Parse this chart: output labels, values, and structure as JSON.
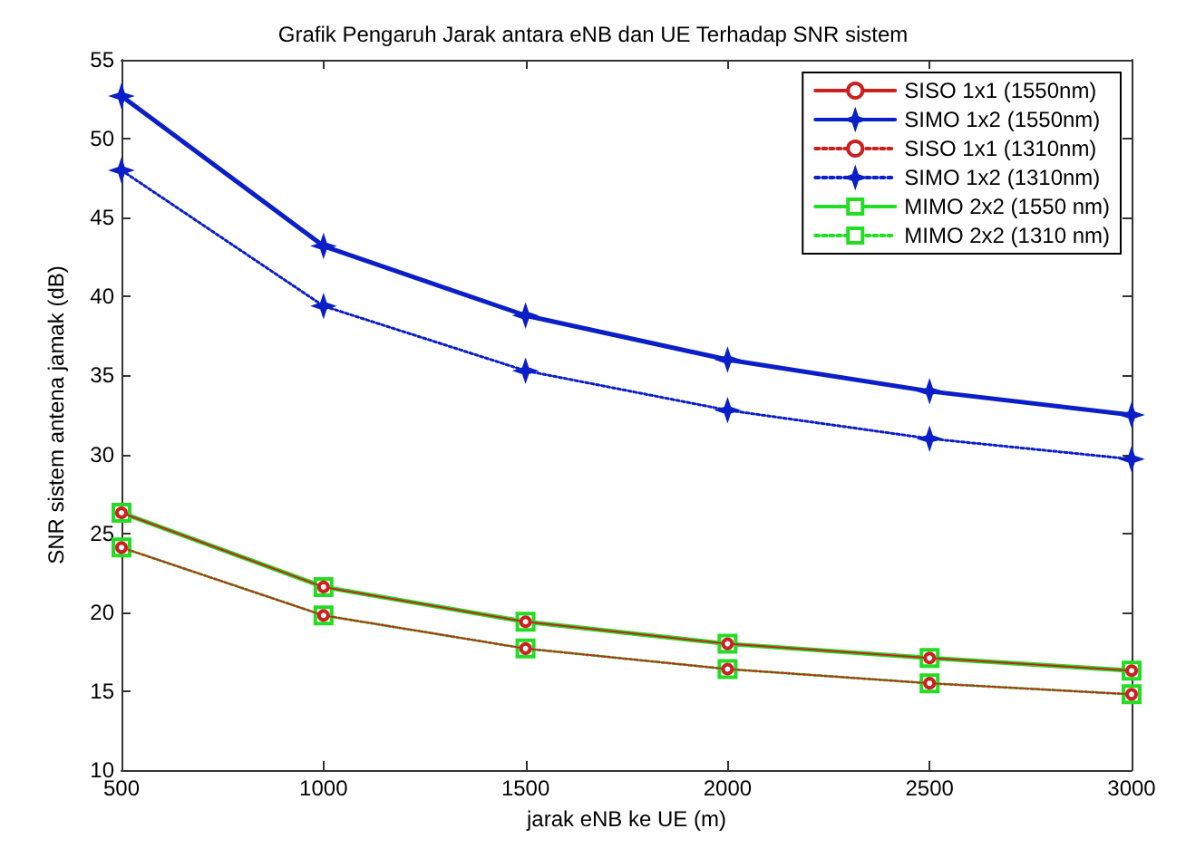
{
  "chart_data": {
    "type": "line",
    "title": "Grafik Pengaruh Jarak antara eNB dan UE Terhadap SNR sistem",
    "xlabel": "jarak eNB ke UE (m)",
    "ylabel": "SNR sistem antena jamak (dB)",
    "x": [
      500,
      1000,
      1500,
      2000,
      2500,
      3000
    ],
    "series": [
      {
        "name": "SISO 1x1 (1550nm)",
        "color": "#cc2020",
        "marker": "circle",
        "line_style": "solid",
        "values": [
          26.3,
          21.6,
          19.4,
          18.0,
          17.1,
          16.3
        ]
      },
      {
        "name": "SIMO 1x2 (1550nm)",
        "color": "#0a1fc8",
        "marker": "star",
        "line_style": "solid",
        "values": [
          52.7,
          43.2,
          38.8,
          36.0,
          34.0,
          32.5
        ]
      },
      {
        "name": "SISO 1x1 (1310nm)",
        "color": "#cc2020",
        "marker": "circle",
        "line_style": "dotted",
        "values": [
          24.1,
          19.8,
          17.7,
          16.4,
          15.5,
          14.8
        ]
      },
      {
        "name": "SIMO 1x2 (1310nm)",
        "color": "#0a1fc8",
        "marker": "star",
        "line_style": "dotted",
        "values": [
          48.0,
          39.4,
          35.3,
          32.8,
          31.0,
          29.7
        ]
      },
      {
        "name": "MIMO 2x2 (1550 nm)",
        "color": "#22dd22",
        "marker": "square",
        "line_style": "solid",
        "values": [
          26.3,
          21.6,
          19.4,
          18.0,
          17.1,
          16.3
        ]
      },
      {
        "name": "MIMO 2x2 (1310 nm)",
        "color": "#22dd22",
        "marker": "square",
        "line_style": "dotted",
        "values": [
          24.1,
          19.8,
          17.7,
          16.4,
          15.5,
          14.8
        ]
      }
    ],
    "xlim": [
      500,
      3000
    ],
    "xticks": [
      500,
      1000,
      1500,
      2000,
      2500,
      3000
    ],
    "ylim": [
      10,
      55
    ],
    "yticks": [
      10,
      15,
      20,
      25,
      30,
      35,
      40,
      45,
      50,
      55
    ],
    "grid": false,
    "legend": "top right"
  }
}
